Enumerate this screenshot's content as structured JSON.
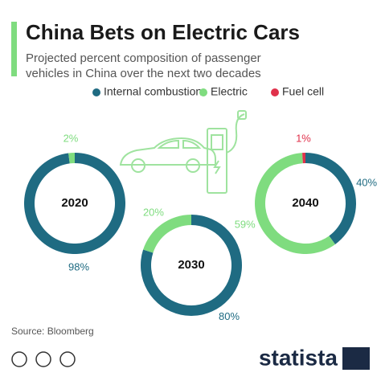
{
  "header": {
    "title": "China Bets on Electric Cars",
    "subtitle": [
      "Projected percent composition of passenger",
      "vehicles in China over the next two decades"
    ]
  },
  "chart_data": {
    "type": "donut",
    "categories": [
      "Internal combustion",
      "Electric",
      "Fuel cell"
    ],
    "colors": [
      "#1f6b82",
      "#7fdc7f",
      "#e0314b"
    ],
    "charts": [
      {
        "label": "2020",
        "values": [
          98,
          2,
          0
        ],
        "value_labels": [
          "98%",
          "2%",
          null
        ]
      },
      {
        "label": "2030",
        "values": [
          80,
          20,
          0
        ],
        "value_labels": [
          "80%",
          "20%",
          null
        ]
      },
      {
        "label": "2040",
        "values": [
          40,
          59,
          1
        ],
        "value_labels": [
          "40%",
          "59%",
          "1%"
        ]
      }
    ]
  },
  "footer": {
    "source": "Source: Bloomberg",
    "brand": "statista"
  }
}
